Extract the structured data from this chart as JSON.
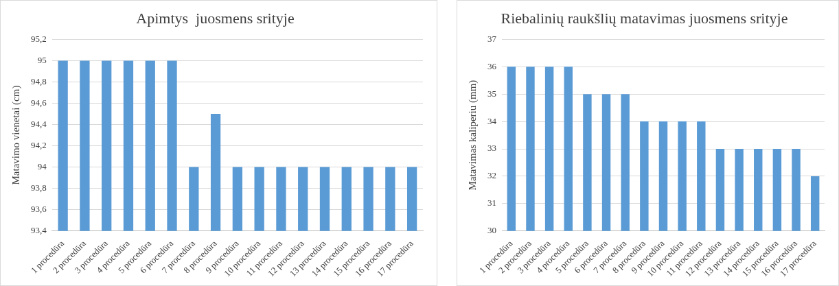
{
  "chart_data": [
    {
      "type": "bar",
      "title": "Apimtys  juosmens srityje",
      "ylabel": "Matavimo vienetai (cm)",
      "categories": [
        "1 procedūra",
        "2 procedūra",
        "3 procedūra",
        "4 procedūra",
        "5 procedūra",
        "6 procedūra",
        "7 procedūra",
        "8 procedūra",
        "9 procedūra",
        "10 procedūra",
        "11 procedūra",
        "12 procedūra",
        "13 procedūra",
        "14 procedūra",
        "15 procedūra",
        "16 procedūra",
        "17 procedūra"
      ],
      "values": [
        95,
        95,
        95,
        95,
        95,
        95,
        94,
        94.5,
        94,
        94,
        94,
        94,
        94,
        94,
        94,
        94,
        94
      ],
      "color": "#5b9bd5",
      "ylim": [
        93.4,
        95.2
      ],
      "yticks": [
        {
          "value": 93.4,
          "label": "93,4"
        },
        {
          "value": 93.6,
          "label": "93,6"
        },
        {
          "value": 93.8,
          "label": "93,8"
        },
        94,
        {
          "value": 94.2,
          "label": "94,2"
        },
        {
          "value": 94.4,
          "label": "94,4"
        },
        {
          "value": 94.6,
          "label": "94,6"
        },
        {
          "value": 94.8,
          "label": "94,8"
        },
        95,
        {
          "value": 95.2,
          "label": "95,2"
        }
      ],
      "grid": "y",
      "legend": false
    },
    {
      "type": "bar",
      "title": "Riebalinių raukšlių matavimas juosmens srityje",
      "ylabel": "Matavimas kaliperiu (mm)",
      "categories": [
        "1 procedūra",
        "2 procedūra",
        "3 procedūra",
        "4 procedūra",
        "5 procedūra",
        "6 procedūra",
        "7 procedūra",
        "8 procedūra",
        "9 procedūra",
        "10 procedūra",
        "11 procedūra",
        "12 procedūra",
        "13 procedūra",
        "14 procedūra",
        "15 procedūra",
        "16 procedūra",
        "17 procedūra"
      ],
      "values": [
        36,
        36,
        36,
        36,
        35,
        35,
        35,
        34,
        34,
        34,
        34,
        33,
        33,
        33,
        33,
        33,
        32
      ],
      "color": "#5b9bd5",
      "ylim": [
        30,
        37
      ],
      "yticks": [
        30,
        31,
        32,
        33,
        34,
        35,
        36,
        37
      ],
      "grid": "y",
      "legend": false
    }
  ]
}
